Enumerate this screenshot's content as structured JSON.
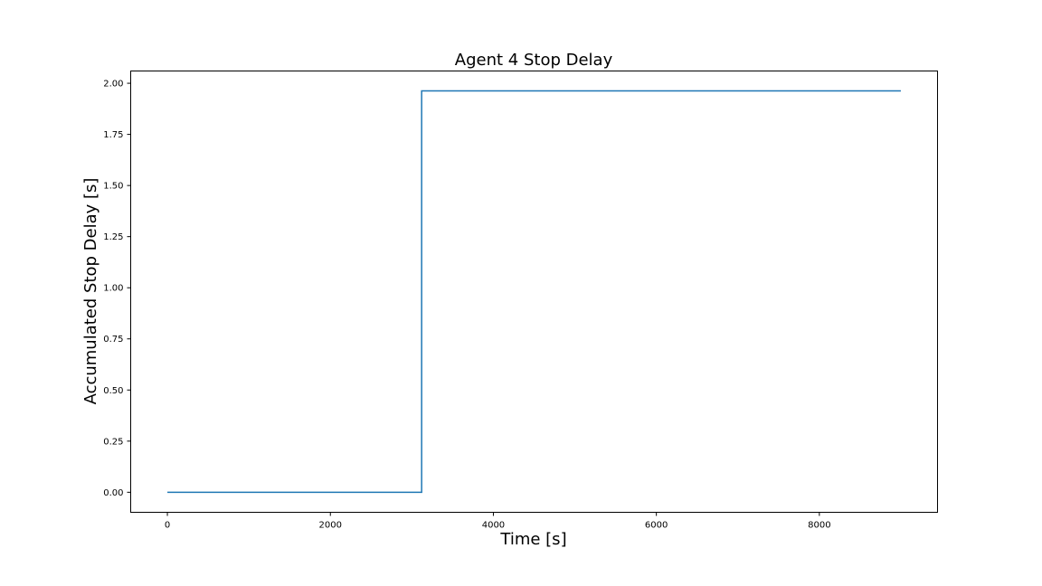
{
  "chart_data": {
    "type": "line",
    "title": "Agent 4 Stop Delay",
    "xlabel": "Time [s]",
    "ylabel": "Accumulated Stop Delay [s]",
    "xlim": [
      -450,
      9450
    ],
    "ylim": [
      -0.098,
      2.06
    ],
    "x_ticks": [
      0,
      2000,
      4000,
      6000,
      8000
    ],
    "x_tick_labels": [
      "0",
      "2000",
      "4000",
      "6000",
      "8000"
    ],
    "y_ticks": [
      0.0,
      0.25,
      0.5,
      0.75,
      1.0,
      1.25,
      1.5,
      1.75,
      2.0
    ],
    "y_tick_labels": [
      "0.00",
      "0.25",
      "0.50",
      "0.75",
      "1.00",
      "1.25",
      "1.50",
      "1.75",
      "2.00"
    ],
    "grid": false,
    "series": [
      {
        "color": "#1f77b4",
        "step": "post",
        "x": [
          0,
          3120,
          9000
        ],
        "y": [
          0.0,
          1.963,
          1.963
        ]
      }
    ]
  }
}
